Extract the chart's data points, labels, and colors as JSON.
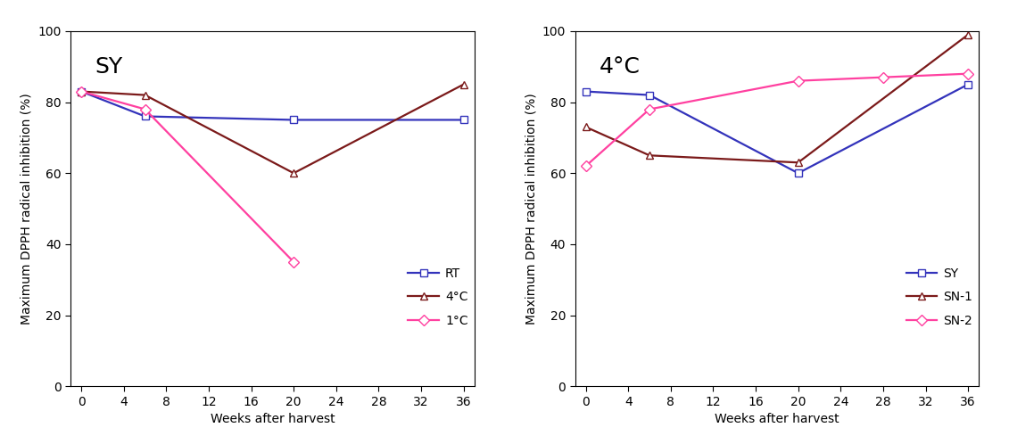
{
  "left_title": "SY",
  "right_title": "4°C",
  "xlabel": "Weeks after harvest",
  "ylabel": "Maximum DPPH radical inhibition (%)",
  "xlim": [
    -1,
    37
  ],
  "ylim": [
    0,
    100
  ],
  "xticks": [
    0,
    4,
    8,
    12,
    16,
    20,
    24,
    28,
    32,
    36
  ],
  "yticks": [
    0,
    20,
    40,
    60,
    80,
    100
  ],
  "left": {
    "series": [
      {
        "label": "RT",
        "x": [
          0,
          6,
          20,
          36
        ],
        "y": [
          83,
          76,
          75,
          75
        ],
        "color": "#3333bb",
        "marker": "s",
        "marker_face": "white"
      },
      {
        "label": "4°C",
        "x": [
          0,
          6,
          20,
          36
        ],
        "y": [
          83,
          82,
          60,
          85
        ],
        "color": "#7b1a1a",
        "marker": "^",
        "marker_face": "white"
      },
      {
        "label": "1°C",
        "x": [
          0,
          6,
          20
        ],
        "y": [
          83,
          78,
          35
        ],
        "color": "#ff40a0",
        "marker": "D",
        "marker_face": "white"
      }
    ]
  },
  "right": {
    "series": [
      {
        "label": "SY",
        "x": [
          0,
          6,
          20,
          36
        ],
        "y": [
          83,
          82,
          60,
          85
        ],
        "color": "#3333bb",
        "marker": "s",
        "marker_face": "white"
      },
      {
        "label": "SN-1",
        "x": [
          0,
          6,
          20,
          36
        ],
        "y": [
          73,
          65,
          63,
          99
        ],
        "color": "#7b1a1a",
        "marker": "^",
        "marker_face": "white"
      },
      {
        "label": "SN-2",
        "x": [
          0,
          6,
          20,
          28,
          36
        ],
        "y": [
          62,
          78,
          86,
          87,
          88
        ],
        "color": "#ff40a0",
        "marker": "D",
        "marker_face": "white"
      }
    ]
  },
  "background_color": "#ffffff",
  "legend_fontsize": 10,
  "axis_fontsize": 10,
  "title_fontsize": 18,
  "linewidth": 1.6,
  "markersize": 6
}
